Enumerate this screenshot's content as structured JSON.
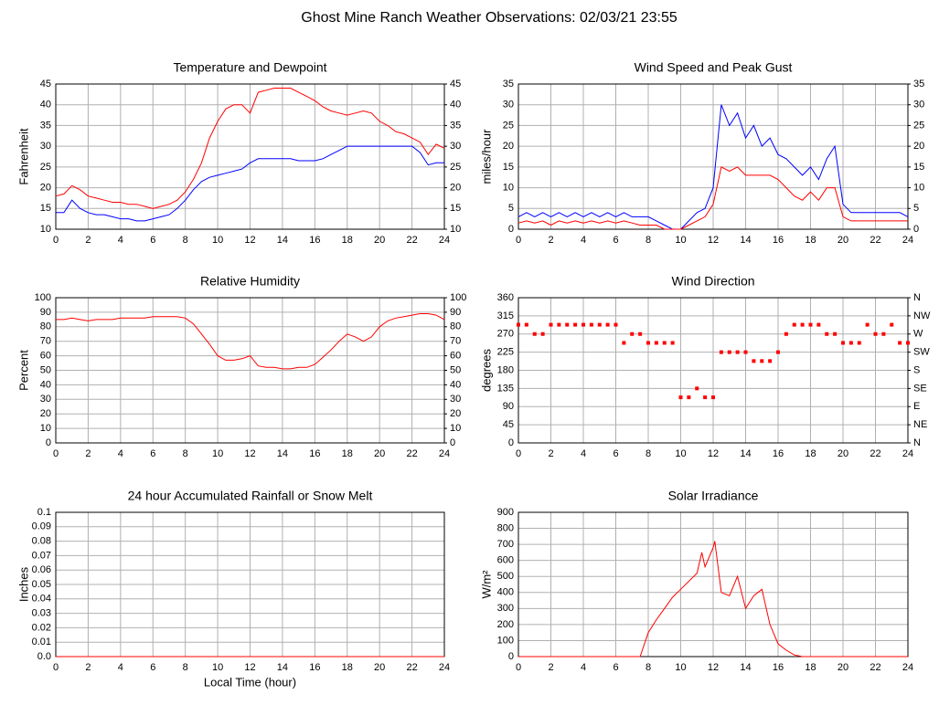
{
  "title": "Ghost Mine Ranch Weather Observations: 02/03/21 23:55",
  "chart_data": [
    {
      "type": "line",
      "title": "Temperature and Dewpoint",
      "y_label": "Fahrenheit",
      "grid": true,
      "x": [
        0,
        0.5,
        1,
        1.5,
        2,
        2.5,
        3,
        3.5,
        4,
        4.5,
        5,
        5.5,
        6,
        6.5,
        7,
        7.5,
        8,
        8.5,
        9,
        9.5,
        10,
        10.5,
        11,
        11.5,
        12,
        12.5,
        13,
        13.5,
        14,
        14.5,
        15,
        15.5,
        16,
        16.5,
        17,
        17.5,
        18,
        18.5,
        19,
        19.5,
        20,
        20.5,
        21,
        21.5,
        22,
        22.5,
        23,
        23.5,
        24
      ],
      "series": [
        {
          "color": "#ff0000",
          "values": [
            18,
            18.5,
            20.5,
            19.5,
            18,
            17.5,
            17,
            16.5,
            16.5,
            16,
            16,
            15.5,
            15,
            15.5,
            16,
            17,
            19,
            22,
            26,
            32,
            36,
            39,
            40,
            40,
            38,
            43,
            43.5,
            44,
            44,
            44,
            43,
            42,
            41,
            39.5,
            38.5,
            38,
            37.5,
            38,
            38.5,
            38,
            36,
            35,
            33.5,
            33,
            32,
            31,
            28,
            30.5,
            29.5
          ]
        },
        {
          "color": "#0000ff",
          "values": [
            14,
            14,
            17,
            15,
            14,
            13.5,
            13.5,
            13,
            12.5,
            12.5,
            12,
            12,
            12.5,
            13,
            13.5,
            15,
            17,
            19.5,
            21.5,
            22.5,
            23,
            23.5,
            24,
            24.5,
            26,
            27,
            27,
            27,
            27,
            27,
            26.5,
            26.5,
            26.5,
            27,
            28,
            29,
            30,
            30,
            30,
            30,
            30,
            30,
            30,
            30,
            30,
            28.5,
            25.5,
            26,
            26
          ]
        }
      ],
      "xlim": [
        0,
        24
      ],
      "xticks": [
        0,
        2,
        4,
        6,
        8,
        10,
        12,
        14,
        16,
        18,
        20,
        22,
        24
      ],
      "ylim": [
        10,
        45
      ],
      "yticks": [
        10,
        15,
        20,
        25,
        30,
        35,
        40,
        45
      ],
      "y2lim": [
        10,
        45
      ],
      "y2ticks": [
        10,
        15,
        20,
        25,
        30,
        35,
        40,
        45
      ]
    },
    {
      "type": "line",
      "title": "Wind Speed and Peak Gust",
      "y_label": "miles/hour",
      "grid": true,
      "x": [
        0,
        0.5,
        1,
        1.5,
        2,
        2.5,
        3,
        3.5,
        4,
        4.5,
        5,
        5.5,
        6,
        6.5,
        7,
        7.5,
        8,
        8.5,
        9,
        9.5,
        10,
        10.5,
        11,
        11.5,
        12,
        12.5,
        13,
        13.5,
        14,
        14.5,
        15,
        15.5,
        16,
        16.5,
        17,
        17.5,
        18,
        18.5,
        19,
        19.5,
        20,
        20.5,
        21,
        21.5,
        22,
        22.5,
        23,
        23.5,
        24
      ],
      "series": [
        {
          "color": "#0000ff",
          "values": [
            3,
            4,
            3,
            4,
            3,
            4,
            3,
            4,
            3,
            4,
            3,
            4,
            3,
            4,
            3,
            3,
            3,
            2,
            1,
            0,
            0,
            2,
            4,
            5,
            10,
            30,
            25,
            28,
            22,
            25,
            20,
            22,
            18,
            17,
            15,
            13,
            15,
            12,
            17,
            20,
            6,
            4,
            4,
            4,
            4,
            4,
            4,
            4,
            3
          ]
        },
        {
          "color": "#ff0000",
          "values": [
            1.5,
            2,
            1.5,
            2,
            1,
            2,
            1.5,
            2,
            1.5,
            2,
            1.5,
            2,
            1.5,
            2,
            1.5,
            1,
            1,
            1,
            0,
            0,
            0,
            1,
            2,
            3,
            6,
            15,
            14,
            15,
            13,
            13,
            13,
            13,
            12,
            10,
            8,
            7,
            9,
            7,
            10,
            10,
            3,
            2,
            2,
            2,
            2,
            2,
            2,
            2,
            2
          ]
        }
      ],
      "xlim": [
        0,
        24
      ],
      "xticks": [
        0,
        2,
        4,
        6,
        8,
        10,
        12,
        14,
        16,
        18,
        20,
        22,
        24
      ],
      "ylim": [
        0,
        35
      ],
      "yticks": [
        0,
        5,
        10,
        15,
        20,
        25,
        30,
        35
      ],
      "y2lim": [
        0,
        35
      ],
      "y2ticks": [
        0,
        5,
        10,
        15,
        20,
        25,
        30,
        35
      ]
    },
    {
      "type": "line",
      "title": "Relative Humidity",
      "y_label": "Percent",
      "grid": true,
      "x": [
        0,
        0.5,
        1,
        1.5,
        2,
        2.5,
        3,
        3.5,
        4,
        4.5,
        5,
        5.5,
        6,
        6.5,
        7,
        7.5,
        8,
        8.5,
        9,
        9.5,
        10,
        10.5,
        11,
        11.5,
        12,
        12.5,
        13,
        13.5,
        14,
        14.5,
        15,
        15.5,
        16,
        16.5,
        17,
        17.5,
        18,
        18.5,
        19,
        19.5,
        20,
        20.5,
        21,
        21.5,
        22,
        22.5,
        23,
        23.5,
        24
      ],
      "series": [
        {
          "color": "#ff0000",
          "values": [
            85,
            85,
            86,
            85,
            84,
            85,
            85,
            85,
            86,
            86,
            86,
            86,
            87,
            87,
            87,
            87,
            86,
            82,
            75,
            68,
            60,
            57,
            57,
            58,
            60,
            53,
            52,
            52,
            51,
            51,
            52,
            52,
            54,
            59,
            64,
            70,
            75,
            73,
            70,
            73,
            80,
            84,
            86,
            87,
            88,
            89,
            89,
            88,
            85
          ]
        }
      ],
      "xlim": [
        0,
        24
      ],
      "xticks": [
        0,
        2,
        4,
        6,
        8,
        10,
        12,
        14,
        16,
        18,
        20,
        22,
        24
      ],
      "ylim": [
        0,
        100
      ],
      "yticks": [
        0,
        10,
        20,
        30,
        40,
        50,
        60,
        70,
        80,
        90,
        100
      ],
      "y2lim": [
        0,
        100
      ],
      "y2ticks": [
        0,
        10,
        20,
        30,
        40,
        50,
        60,
        70,
        80,
        90,
        100
      ]
    },
    {
      "type": "scatter",
      "title": "Wind Direction",
      "y_label": "degrees",
      "grid": true,
      "x": [
        0,
        0.5,
        1,
        1.5,
        2,
        2.5,
        3,
        3.5,
        4,
        4.5,
        5,
        5.5,
        6,
        6.5,
        7,
        7.5,
        8,
        8.5,
        9,
        9.5,
        10,
        10.5,
        11,
        11.5,
        12,
        12.5,
        13,
        13.5,
        14,
        14.5,
        15,
        15.5,
        16,
        16.5,
        17,
        17.5,
        18,
        18.5,
        19,
        19.5,
        20,
        20.5,
        21,
        21.5,
        22,
        22.5,
        23,
        23.5,
        24
      ],
      "series": [
        {
          "color": "#ff0000",
          "values": [
            293,
            293,
            270,
            270,
            293,
            293,
            293,
            293,
            293,
            293,
            293,
            293,
            293,
            248,
            270,
            270,
            248,
            248,
            248,
            248,
            113,
            113,
            135,
            113,
            113,
            225,
            225,
            225,
            225,
            203,
            203,
            203,
            225,
            270,
            293,
            293,
            293,
            293,
            270,
            270,
            248,
            248,
            248,
            293,
            270,
            270,
            293,
            248,
            248
          ]
        }
      ],
      "xlim": [
        0,
        24
      ],
      "xticks": [
        0,
        2,
        4,
        6,
        8,
        10,
        12,
        14,
        16,
        18,
        20,
        22,
        24
      ],
      "ylim": [
        0,
        360
      ],
      "yticks": [
        0,
        45,
        90,
        135,
        180,
        225,
        270,
        315,
        360
      ],
      "y2lim": [
        0,
        360
      ],
      "y2ticks": [
        {
          "value": 0,
          "label": "N"
        },
        {
          "value": 45,
          "label": "NE"
        },
        {
          "value": 90,
          "label": "E"
        },
        {
          "value": 135,
          "label": "SE"
        },
        {
          "value": 180,
          "label": "S"
        },
        {
          "value": 225,
          "label": "SW"
        },
        {
          "value": 270,
          "label": "W"
        },
        {
          "value": 315,
          "label": "NW"
        },
        {
          "value": 360,
          "label": "N"
        }
      ]
    },
    {
      "type": "line",
      "title": "24 hour Accumulated Rainfall or Snow Melt",
      "y_label": "Inches",
      "x_label": "Local Time (hour)",
      "grid": true,
      "x": [
        0,
        24
      ],
      "series": [
        {
          "color": "#ff0000",
          "values": [
            0,
            0
          ]
        }
      ],
      "xlim": [
        0,
        24
      ],
      "xticks": [
        0,
        2,
        4,
        6,
        8,
        10,
        12,
        14,
        16,
        18,
        20,
        22,
        24
      ],
      "ylim": [
        0,
        0.1
      ],
      "yticks": [
        {
          "value": 0,
          "label": "0.0"
        },
        0.01,
        0.02,
        0.03,
        0.04,
        0.05,
        0.06,
        0.07,
        0.08,
        0.09,
        0.1
      ]
    },
    {
      "type": "line",
      "title": "Solar Irradiance",
      "y_label": "W/m²",
      "grid": true,
      "x": [
        0,
        0.5,
        1,
        1.5,
        2,
        2.5,
        3,
        3.5,
        4,
        4.5,
        5,
        5.5,
        6,
        6.5,
        7,
        7.5,
        8,
        8.5,
        9,
        9.5,
        10,
        10.5,
        11,
        11.3,
        11.5,
        12,
        12.1,
        12.5,
        13,
        13.5,
        14,
        14.5,
        15,
        15.5,
        16,
        16.5,
        17,
        17.5,
        18,
        18.5,
        19,
        19.5,
        20,
        20.5,
        21,
        21.5,
        22,
        22.5,
        23,
        23.5,
        24
      ],
      "series": [
        {
          "color": "#ff0000",
          "values": [
            0,
            0,
            0,
            0,
            0,
            0,
            0,
            0,
            0,
            0,
            0,
            0,
            0,
            0,
            0,
            0,
            150,
            230,
            300,
            370,
            420,
            470,
            520,
            650,
            560,
            680,
            720,
            400,
            380,
            500,
            300,
            380,
            420,
            200,
            80,
            40,
            10,
            0,
            0,
            0,
            0,
            0,
            0,
            0,
            0,
            0,
            0,
            0,
            0,
            0,
            0
          ]
        }
      ],
      "xlim": [
        0,
        24
      ],
      "xticks": [
        0,
        2,
        4,
        6,
        8,
        10,
        12,
        14,
        16,
        18,
        20,
        22,
        24
      ],
      "ylim": [
        0,
        900
      ],
      "yticks": [
        0,
        100,
        200,
        300,
        400,
        500,
        600,
        700,
        800,
        900
      ]
    }
  ]
}
